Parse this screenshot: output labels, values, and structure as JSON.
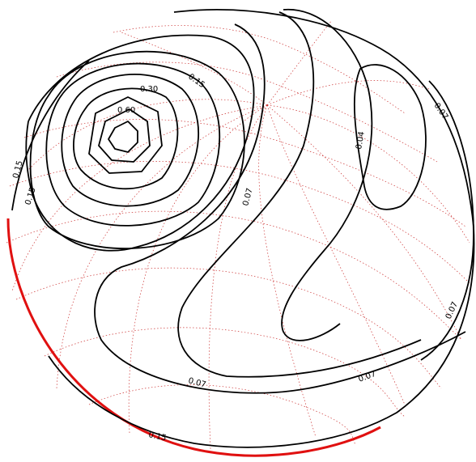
{
  "contour_labels": {
    "l1": "0.15",
    "l2": "0.30",
    "l3": "0.60",
    "l4": "0.15",
    "l5": "0.15",
    "l6": "0.07",
    "l7": "0.04",
    "l8": "0.07",
    "l9": "0.07",
    "l10": "0.07",
    "l11": "0.07",
    "l12": "0.15"
  },
  "colors": {
    "contour": "#000000",
    "grid": "#cc3333",
    "rim": "#e01010"
  }
}
